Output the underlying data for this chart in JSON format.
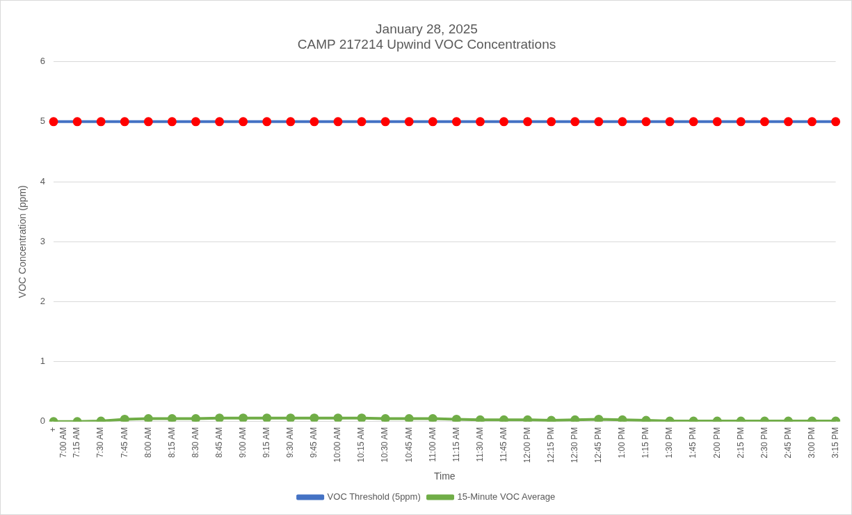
{
  "chart_data": {
    "type": "line",
    "title": "January 28, 2025",
    "subtitle": "CAMP 217214 Upwind VOC Concentrations",
    "xlabel": "Time",
    "ylabel": "VOC Concentration (ppm)",
    "categories": [
      "+\n7:00 AM",
      "7:15 AM",
      "7:30 AM",
      "7:45 AM",
      "8:00 AM",
      "8:15 AM",
      "8:30 AM",
      "8:45 AM",
      "9:00 AM",
      "9:15 AM",
      "9:30 AM",
      "9:45 AM",
      "10:00 AM",
      "10:15 AM",
      "10:30 AM",
      "10:45 AM",
      "11:00 AM",
      "11:15 AM",
      "11:30 AM",
      "11:45 AM",
      "12:00 PM",
      "12:15 PM",
      "12:30 PM",
      "12:45 PM",
      "1:00 PM",
      "1:15 PM",
      "1:30 PM",
      "1:45 PM",
      "2:00 PM",
      "2:15 PM",
      "2:30 PM",
      "2:45 PM",
      "3:00 PM",
      "3:15 PM"
    ],
    "series": [
      {
        "name": "VOC Threshold (5ppm)",
        "color": "#4472c4",
        "colors": [
          "#ff0000",
          "#ff0000",
          "#ff0000",
          "#ff0000",
          "#ff0000",
          "#ff0000",
          "#ff0000",
          "#ff0000",
          "#ff0000",
          "#ff0000",
          "#ff0000",
          "#ff0000",
          "#ff0000",
          "#ff0000",
          "#ff0000",
          "#ff0000",
          "#ff0000",
          "#ff0000",
          "#ff0000",
          "#ff0000",
          "#ff0000",
          "#ff0000",
          "#ff0000",
          "#ff0000",
          "#ff0000",
          "#ff0000",
          "#ff0000",
          "#ff0000",
          "#ff0000",
          "#ff0000",
          "#ff0000",
          "#ff0000",
          "#ff0000",
          "#ff0000"
        ],
        "values": [
          5,
          5,
          5,
          5,
          5,
          5,
          5,
          5,
          5,
          5,
          5,
          5,
          5,
          5,
          5,
          5,
          5,
          5,
          5,
          5,
          5,
          5,
          5,
          5,
          5,
          5,
          5,
          5,
          5,
          5,
          5,
          5,
          5,
          5
        ]
      },
      {
        "name": "15-Minute VOC Average",
        "color": "#70ad47",
        "values": [
          0,
          0,
          0.01,
          0.04,
          0.05,
          0.05,
          0.05,
          0.06,
          0.06,
          0.06,
          0.06,
          0.06,
          0.06,
          0.06,
          0.05,
          0.05,
          0.05,
          0.04,
          0.03,
          0.03,
          0.03,
          0.02,
          0.03,
          0.04,
          0.03,
          0.02,
          0.01,
          0.01,
          0.01,
          0.01,
          0.01,
          0.01,
          0.01,
          0.01
        ]
      }
    ],
    "ylim": [
      0,
      6
    ],
    "yticks": [
      0,
      1,
      2,
      3,
      4,
      5,
      6
    ],
    "grid": "y",
    "legend": "bottom",
    "marker": "circle",
    "line_style": "solid"
  }
}
